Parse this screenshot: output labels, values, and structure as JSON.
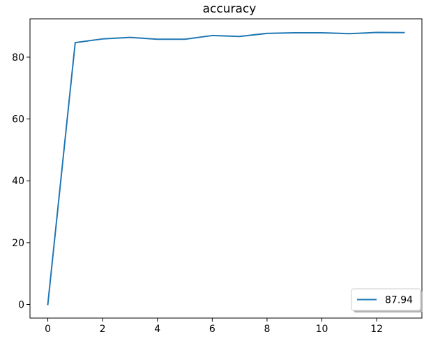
{
  "chart_data": {
    "type": "line",
    "title": "accuracy",
    "xlabel": "",
    "ylabel": "",
    "xlim": [
      -0.65,
      13.65
    ],
    "ylim": [
      -4.4,
      92.4
    ],
    "x_ticks": [
      0,
      2,
      4,
      6,
      8,
      10,
      12
    ],
    "y_ticks": [
      0,
      20,
      40,
      60,
      80
    ],
    "grid": false,
    "legend_position": "lower-right",
    "series": [
      {
        "name": "87.94",
        "color": "#1f77b4",
        "x": [
          0,
          1,
          2,
          3,
          4,
          5,
          6,
          7,
          8,
          9,
          10,
          11,
          12,
          13
        ],
        "y": [
          0,
          84.7,
          85.9,
          86.4,
          85.8,
          85.8,
          87.0,
          86.7,
          87.7,
          87.9,
          87.9,
          87.6,
          88.0,
          87.94
        ]
      }
    ]
  }
}
